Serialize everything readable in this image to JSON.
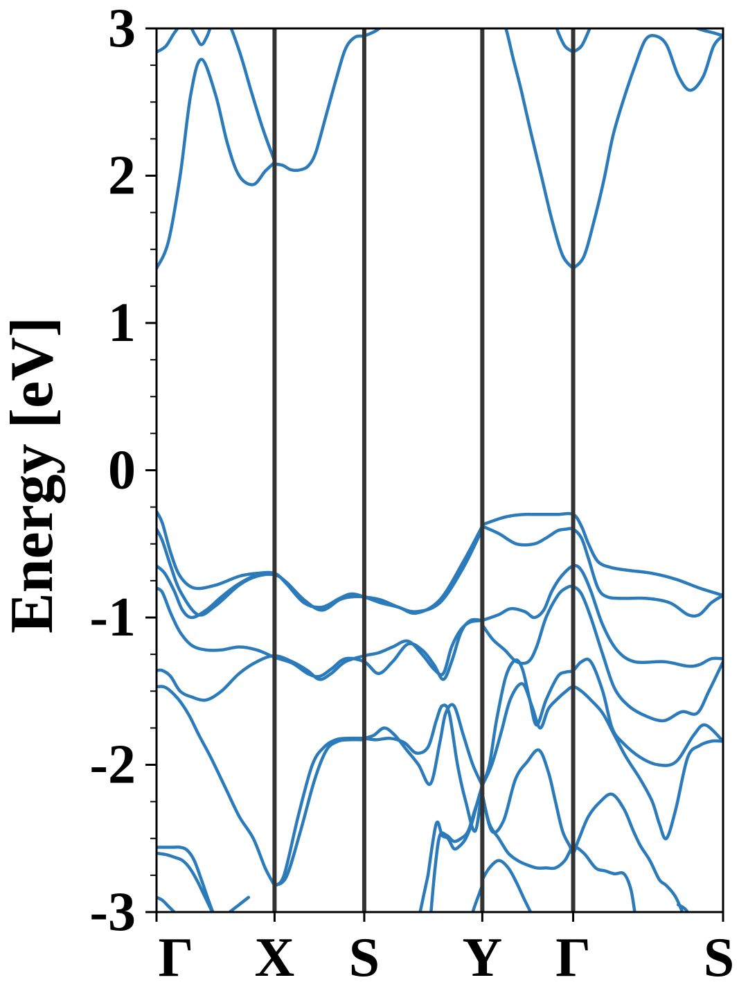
{
  "chart_data": {
    "type": "line",
    "title": "",
    "xlabel": "",
    "ylabel": "Energy [eV]",
    "ylim": [
      -3,
      3
    ],
    "xlim": [
      0,
      4.8
    ],
    "y_ticks": [
      -3,
      -2,
      -1,
      0,
      1,
      2,
      3
    ],
    "y_tick_labels": [
      "-3",
      "-2",
      "-1",
      "0",
      "1",
      "2",
      "3"
    ],
    "y_minor_step": 0.25,
    "x_ticks": [
      {
        "x": 0,
        "label": "Γ"
      },
      {
        "x": 1.0,
        "label": "X"
      },
      {
        "x": 1.76,
        "label": "S"
      },
      {
        "x": 2.76,
        "label": "Y"
      },
      {
        "x": 3.53,
        "label": "Γ"
      },
      {
        "x": 4.8,
        "label": "S"
      }
    ],
    "high_symmetry_lines": [
      1.0,
      1.76,
      2.76,
      3.53
    ],
    "grid": false,
    "legend": "none",
    "line_color": "#2b7bba",
    "vline_color": "#333333",
    "series": [
      {
        "x": [
          0,
          0.1,
          0.2,
          0.29,
          0.38,
          0.5,
          0.6,
          0.7,
          0.82,
          0.92,
          1.0
        ],
        "values": [
          1.37,
          1.55,
          2.0,
          2.55,
          2.79,
          2.55,
          2.22,
          2.0,
          1.94,
          2.03,
          2.09
        ]
      },
      {
        "x": [
          0,
          0.08,
          0.16,
          0.25,
          0.33,
          0.38,
          0.43,
          0.5,
          0.6,
          0.7,
          0.8,
          0.9,
          1.0
        ],
        "values": [
          2.84,
          2.88,
          2.98,
          3.05,
          2.95,
          2.89,
          2.95,
          3.08,
          3.05,
          2.85,
          2.58,
          2.32,
          2.1
        ]
      },
      {
        "x": [
          1.0,
          1.07,
          1.14,
          1.22,
          1.29,
          1.35,
          1.43,
          1.52,
          1.6,
          1.68,
          1.76,
          1.85,
          1.92
        ],
        "values": [
          2.08,
          2.07,
          2.04,
          2.04,
          2.07,
          2.16,
          2.39,
          2.65,
          2.86,
          2.94,
          2.95,
          2.98,
          3.02
        ]
      },
      {
        "x": [
          3.53,
          3.44,
          3.35,
          3.26,
          3.17,
          3.09,
          3.02,
          2.96,
          2.91
        ],
        "values": [
          1.37,
          1.46,
          1.7,
          2.0,
          2.3,
          2.58,
          2.8,
          3.0,
          3.08
        ]
      },
      {
        "x": [
          3.53,
          3.46,
          3.4,
          3.36,
          3.3
        ],
        "values": [
          2.84,
          2.88,
          2.98,
          3.08,
          3.1
        ]
      },
      {
        "x": [
          3.53,
          3.6,
          3.66,
          3.72
        ],
        "values": [
          2.84,
          2.88,
          2.98,
          3.1
        ]
      },
      {
        "x": [
          3.53,
          3.62,
          3.7,
          3.79,
          3.87,
          3.97,
          4.06,
          4.14,
          4.22,
          4.32,
          4.42,
          4.52,
          4.63,
          4.72,
          4.8
        ],
        "values": [
          1.37,
          1.45,
          1.67,
          1.97,
          2.28,
          2.55,
          2.76,
          2.92,
          2.95,
          2.89,
          2.68,
          2.58,
          2.67,
          2.88,
          2.95
        ]
      },
      {
        "x": [
          4.42,
          4.52,
          4.62,
          4.72,
          4.8
        ],
        "values": [
          3.08,
          3.02,
          2.99,
          2.97,
          2.95
        ]
      },
      {
        "x": [
          0,
          0.05,
          0.12,
          0.2,
          0.32,
          0.5,
          0.7,
          0.85,
          1.0,
          1.1,
          1.25,
          1.4,
          1.55,
          1.65,
          1.76,
          1.9,
          2.05,
          2.2,
          2.4,
          2.6,
          2.76
        ],
        "values": [
          -0.28,
          -0.36,
          -0.56,
          -0.72,
          -0.8,
          -0.78,
          -0.72,
          -0.7,
          -0.7,
          -0.77,
          -0.9,
          -0.93,
          -0.87,
          -0.84,
          -0.86,
          -0.9,
          -0.93,
          -0.97,
          -0.88,
          -0.62,
          -0.38
        ]
      },
      {
        "x": [
          0,
          0.05,
          0.12,
          0.2,
          0.35,
          0.5,
          0.7,
          0.85,
          1.0,
          1.1,
          1.25,
          1.4,
          1.55,
          1.65,
          1.76,
          1.9,
          2.05,
          2.2,
          2.4,
          2.6,
          2.76
        ],
        "values": [
          -0.4,
          -0.48,
          -0.65,
          -0.82,
          -0.98,
          -0.92,
          -0.78,
          -0.72,
          -0.71,
          -0.76,
          -0.88,
          -0.95,
          -0.88,
          -0.86,
          -0.86,
          -0.88,
          -0.93,
          -0.96,
          -0.9,
          -0.66,
          -0.4
        ]
      },
      {
        "x": [
          0,
          0.07,
          0.15,
          0.22,
          0.3,
          0.42,
          0.55,
          0.68,
          0.82,
          0.92,
          1.0
        ],
        "values": [
          -0.65,
          -0.7,
          -0.82,
          -0.95,
          -1.0,
          -0.95,
          -0.86,
          -0.78,
          -0.72,
          -0.7,
          -0.71
        ]
      },
      {
        "x": [
          0,
          0.05,
          0.12,
          0.2,
          0.3,
          0.42,
          0.55,
          0.7,
          0.85,
          1.0,
          1.15,
          1.28,
          1.38,
          1.48,
          1.6,
          1.76,
          1.88,
          2.0,
          2.13,
          2.25,
          2.35,
          2.43,
          2.5,
          2.58,
          2.66,
          2.76
        ],
        "values": [
          -0.8,
          -0.83,
          -0.97,
          -1.1,
          -1.19,
          -1.22,
          -1.22,
          -1.2,
          -1.22,
          -1.27,
          -1.31,
          -1.38,
          -1.4,
          -1.35,
          -1.28,
          -1.3,
          -1.38,
          -1.3,
          -1.18,
          -1.22,
          -1.32,
          -1.42,
          -1.3,
          -1.1,
          -1.02,
          -1.02
        ]
      },
      {
        "x": [
          0,
          0.05,
          0.12,
          0.2,
          0.3,
          0.42,
          0.55,
          0.7,
          0.85,
          1.0,
          1.15,
          1.28,
          1.38,
          1.48,
          1.6,
          1.76,
          1.88,
          2.0,
          2.13,
          2.25,
          2.35,
          2.43,
          2.5,
          2.58,
          2.66,
          2.76
        ],
        "values": [
          -1.36,
          -1.36,
          -1.4,
          -1.5,
          -1.54,
          -1.56,
          -1.5,
          -1.38,
          -1.3,
          -1.26,
          -1.3,
          -1.36,
          -1.42,
          -1.38,
          -1.3,
          -1.26,
          -1.24,
          -1.2,
          -1.16,
          -1.25,
          -1.35,
          -1.38,
          -1.2,
          -1.08,
          -1.03,
          -1.02
        ]
      },
      {
        "x": [
          2.76,
          2.9,
          3.0,
          3.12,
          3.2,
          3.28,
          3.4,
          3.53,
          3.6,
          3.66,
          3.74,
          3.85,
          4.0,
          4.2,
          4.4,
          4.6,
          4.8
        ],
        "values": [
          -0.37,
          -0.33,
          -0.31,
          -0.3,
          -0.3,
          -0.3,
          -0.3,
          -0.3,
          -0.38,
          -0.5,
          -0.62,
          -0.66,
          -0.68,
          -0.7,
          -0.74,
          -0.8,
          -0.85
        ]
      },
      {
        "x": [
          2.76,
          2.9,
          3.05,
          3.2,
          3.3,
          3.4,
          3.47,
          3.53,
          3.6,
          3.66,
          3.74,
          3.82,
          3.95,
          4.15,
          4.35,
          4.5,
          4.6,
          4.7,
          4.8
        ],
        "values": [
          -0.38,
          -0.43,
          -0.5,
          -0.5,
          -0.46,
          -0.41,
          -0.4,
          -0.4,
          -0.46,
          -0.6,
          -0.8,
          -0.86,
          -0.87,
          -0.87,
          -0.9,
          -0.98,
          -0.98,
          -0.9,
          -0.85
        ]
      },
      {
        "x": [
          2.76,
          2.9,
          3.0,
          3.12,
          3.2,
          3.28,
          3.35,
          3.43,
          3.53,
          3.6,
          3.68,
          3.78,
          3.9,
          4.05,
          4.3,
          4.5,
          4.6,
          4.7,
          4.8
        ],
        "values": [
          -1.02,
          -0.98,
          -0.94,
          -0.96,
          -1.0,
          -0.95,
          -0.82,
          -0.72,
          -0.65,
          -0.68,
          -0.82,
          -1.05,
          -1.22,
          -1.3,
          -1.3,
          -1.33,
          -1.32,
          -1.28,
          -1.28
        ]
      },
      {
        "x": [
          2.76,
          2.85,
          2.95,
          3.05,
          3.15,
          3.22,
          3.3,
          3.4,
          3.47,
          3.53,
          3.6,
          3.68,
          3.78,
          3.88,
          4.0,
          4.15,
          4.3,
          4.45,
          4.58,
          4.68,
          4.8
        ],
        "values": [
          -1.05,
          -1.15,
          -1.22,
          -1.3,
          -1.3,
          -1.2,
          -1.0,
          -0.85,
          -0.8,
          -0.79,
          -0.84,
          -1.0,
          -1.25,
          -1.48,
          -1.6,
          -1.67,
          -1.7,
          -1.64,
          -1.65,
          -1.5,
          -1.3
        ]
      },
      {
        "x": [
          2.76,
          2.82,
          2.88,
          2.96,
          3.04,
          3.1,
          3.16,
          3.22,
          3.3,
          3.4,
          3.47,
          3.53,
          3.6,
          3.68,
          3.78,
          3.86,
          3.95,
          4.1,
          4.25,
          4.4,
          4.55,
          4.65,
          4.8
        ],
        "values": [
          -2.14,
          -2.0,
          -1.7,
          -1.4,
          -1.29,
          -1.35,
          -1.55,
          -1.73,
          -1.56,
          -1.4,
          -1.37,
          -1.36,
          -1.3,
          -1.3,
          -1.5,
          -1.75,
          -1.85,
          -1.95,
          -2.0,
          -1.98,
          -1.8,
          -1.73,
          -1.84
        ]
      },
      {
        "x": [
          2.76,
          2.84,
          2.92,
          3.0,
          3.1,
          3.18,
          3.25,
          3.32,
          3.4,
          3.47,
          3.53,
          3.6,
          3.68,
          3.78,
          3.88,
          3.98,
          4.1,
          4.2,
          4.26,
          4.32,
          4.4,
          4.5,
          4.6,
          4.7,
          4.8
        ],
        "values": [
          -2.14,
          -2.0,
          -1.78,
          -1.55,
          -1.45,
          -1.6,
          -1.75,
          -1.62,
          -1.55,
          -1.5,
          -1.47,
          -1.5,
          -1.56,
          -1.65,
          -1.8,
          -1.95,
          -2.1,
          -2.25,
          -2.4,
          -2.5,
          -2.3,
          -1.95,
          -1.87,
          -1.84,
          -1.84
        ]
      },
      {
        "x": [
          1.0,
          0.92,
          0.82,
          0.7,
          0.58,
          0.46,
          0.36,
          0.28,
          0.2,
          0.12,
          0.06,
          0
        ],
        "values": [
          -2.82,
          -2.7,
          -2.5,
          -2.35,
          -2.15,
          -1.95,
          -1.8,
          -1.67,
          -1.57,
          -1.5,
          -1.47,
          -1.47
        ]
      },
      {
        "x": [
          1.0,
          1.08,
          1.2,
          1.32,
          1.42,
          1.52,
          1.62,
          1.76
        ],
        "values": [
          -2.82,
          -2.75,
          -2.35,
          -2.0,
          -1.88,
          -1.83,
          -1.82,
          -1.82
        ]
      },
      {
        "x": [
          1.0,
          1.1,
          1.22,
          1.34,
          1.44,
          1.54,
          1.64,
          1.76
        ],
        "values": [
          -2.82,
          -2.76,
          -2.45,
          -2.1,
          -1.9,
          -1.84,
          -1.83,
          -1.83
        ]
      },
      {
        "x": [
          1.76,
          1.84,
          1.93,
          2.02,
          2.12,
          2.22,
          2.32,
          2.4,
          2.45,
          2.52,
          2.6,
          2.68,
          2.76
        ],
        "values": [
          -1.82,
          -1.8,
          -1.75,
          -1.8,
          -1.9,
          -2.0,
          -2.13,
          -1.85,
          -1.65,
          -1.6,
          -1.8,
          -2.0,
          -2.14
        ]
      },
      {
        "x": [
          1.76,
          1.86,
          1.98,
          2.1,
          2.2,
          2.3,
          2.37,
          2.42,
          2.48,
          2.55,
          2.62,
          2.7,
          2.76
        ],
        "values": [
          -1.82,
          -1.83,
          -1.82,
          -1.85,
          -1.92,
          -1.88,
          -1.7,
          -1.6,
          -1.65,
          -2.0,
          -2.25,
          -2.45,
          -2.14
        ]
      },
      {
        "x": [
          2.76,
          2.72,
          2.67,
          2.62,
          2.57,
          2.52,
          2.47,
          2.42,
          2.37,
          2.3
        ],
        "values": [
          -2.14,
          -2.25,
          -2.4,
          -2.5,
          -2.55,
          -2.57,
          -2.5,
          -2.48,
          -2.4,
          -2.75
        ]
      },
      {
        "x": [
          2.76,
          2.7,
          2.64,
          2.58,
          2.52,
          2.46,
          2.4,
          2.36,
          2.32
        ],
        "values": [
          -2.16,
          -2.3,
          -2.45,
          -2.5,
          -2.52,
          -2.48,
          -2.48,
          -2.7,
          -3.05
        ]
      },
      {
        "x": [
          2.76,
          2.82,
          2.9,
          2.98,
          3.06,
          3.14,
          3.22,
          3.3,
          3.38,
          3.46,
          3.53,
          3.62,
          3.72,
          3.8,
          3.88,
          3.96,
          4.02,
          4.06
        ],
        "values": [
          -2.2,
          -2.4,
          -2.5,
          -2.6,
          -2.65,
          -2.68,
          -2.7,
          -2.7,
          -2.7,
          -2.65,
          -2.56,
          -2.6,
          -2.7,
          -2.72,
          -2.74,
          -2.74,
          -2.85,
          -3.05
        ]
      },
      {
        "x": [
          2.76,
          2.84,
          2.94,
          3.04,
          3.14,
          3.24,
          3.32,
          3.38,
          3.44,
          3.5,
          3.53,
          3.58,
          3.66,
          3.76,
          3.86,
          3.96,
          4.04,
          4.1,
          4.18,
          4.26,
          4.32,
          4.4,
          4.48
        ],
        "values": [
          -2.2,
          -2.45,
          -2.38,
          -2.1,
          -1.98,
          -1.9,
          -2.05,
          -2.25,
          -2.45,
          -2.55,
          -2.6,
          -2.5,
          -2.35,
          -2.25,
          -2.2,
          -2.3,
          -2.45,
          -2.55,
          -2.65,
          -2.78,
          -2.82,
          -2.9,
          -3.05
        ]
      },
      {
        "x": [
          0,
          0.07,
          0.14,
          0.2,
          0.26,
          0.32,
          0.38,
          0.44,
          0.5
        ],
        "values": [
          -2.56,
          -2.56,
          -2.56,
          -2.56,
          -2.58,
          -2.65,
          -2.78,
          -2.92,
          -3.05
        ]
      },
      {
        "x": [
          0,
          0.08,
          0.16,
          0.22,
          0.28,
          0.34,
          0.4,
          0.46,
          0.5
        ],
        "values": [
          -2.6,
          -2.61,
          -2.63,
          -2.65,
          -2.7,
          -2.78,
          -2.88,
          -2.98,
          -3.05
        ]
      },
      {
        "x": [
          0,
          0.05,
          0.1,
          0.15,
          0.2
        ],
        "values": [
          -2.9,
          -2.92,
          -2.96,
          -3.0,
          -3.05
        ]
      },
      {
        "x": [
          0.55,
          0.62,
          0.7,
          0.78
        ],
        "values": [
          -3.05,
          -3.0,
          -2.95,
          -2.9
        ]
      },
      {
        "x": [
          2.76,
          2.82,
          2.9,
          2.98,
          3.05,
          3.12,
          3.2
        ],
        "values": [
          -2.78,
          -2.7,
          -2.65,
          -2.7,
          -2.8,
          -2.92,
          -3.05
        ]
      },
      {
        "x": [
          2.76,
          2.7,
          2.66
        ],
        "values": [
          -2.82,
          -2.95,
          -3.05
        ]
      },
      {
        "x": [
          2.22,
          2.26,
          2.3
        ],
        "values": [
          -3.05,
          -2.9,
          -2.75
        ]
      },
      {
        "x": [
          4.42,
          4.48,
          4.54
        ],
        "values": [
          -2.95,
          -2.98,
          -3.05
        ]
      }
    ]
  }
}
